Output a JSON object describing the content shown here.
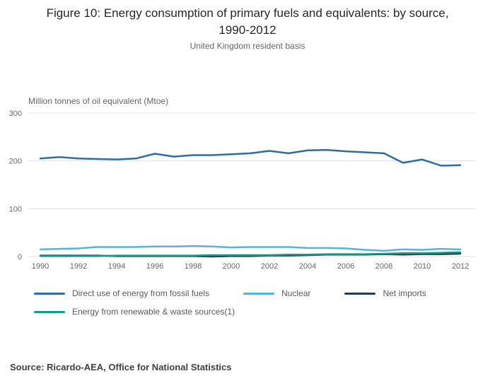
{
  "header": {
    "title_line1": "Figure 10: Energy consumption of primary fuels and equivalents: by source,",
    "title_line2": "1990-2012",
    "subtitle": "United Kingdom resident basis"
  },
  "chart_data": {
    "type": "line",
    "unit_label": "Million tonnes of oil equivalent (Mtoe)",
    "ylim": [
      0,
      300
    ],
    "y_ticks": [
      0,
      100,
      200,
      300
    ],
    "x": [
      1990,
      1991,
      1992,
      1993,
      1994,
      1995,
      1996,
      1997,
      1998,
      1999,
      2000,
      2001,
      2002,
      2003,
      2004,
      2005,
      2006,
      2007,
      2008,
      2009,
      2010,
      2011,
      2012
    ],
    "x_ticks": [
      1990,
      1992,
      1994,
      1996,
      1998,
      2000,
      2002,
      2004,
      2006,
      2008,
      2010,
      2012
    ],
    "grid": "horizontal",
    "legend_position": "bottom",
    "series": [
      {
        "id": "fossil",
        "name": "Direct use of energy from fossil fuels",
        "color": "#2e6e9e",
        "values": [
          205,
          208,
          205,
          204,
          203,
          205,
          215,
          209,
          212,
          212,
          214,
          216,
          221,
          216,
          222,
          223,
          220,
          218,
          216,
          196,
          203,
          190,
          191
        ]
      },
      {
        "id": "nuclear",
        "name": "Nuclear",
        "color": "#57b3dd",
        "values": [
          15,
          16,
          17,
          20,
          20,
          20,
          21,
          21,
          22,
          21,
          19,
          20,
          20,
          20,
          18,
          18,
          17,
          14,
          12,
          15,
          14,
          16,
          15
        ]
      },
      {
        "id": "net-imports",
        "name": "Net imports",
        "color": "#1f3f5e",
        "values": [
          2,
          2,
          2,
          2,
          1,
          1,
          1,
          1,
          1,
          0,
          1,
          1,
          2,
          2,
          3,
          4,
          4,
          4,
          5,
          4,
          5,
          5,
          6
        ]
      },
      {
        "id": "renewables",
        "name": "Energy from renewable & waste sources(1)",
        "color": "#1b9a83",
        "values": [
          1,
          1,
          1,
          1,
          2,
          2,
          2,
          2,
          2,
          3,
          3,
          3,
          3,
          4,
          4,
          5,
          5,
          5,
          6,
          7,
          7,
          8,
          9
        ]
      }
    ]
  },
  "source": "Source: Ricardo-AEA, Office for National Statistics"
}
